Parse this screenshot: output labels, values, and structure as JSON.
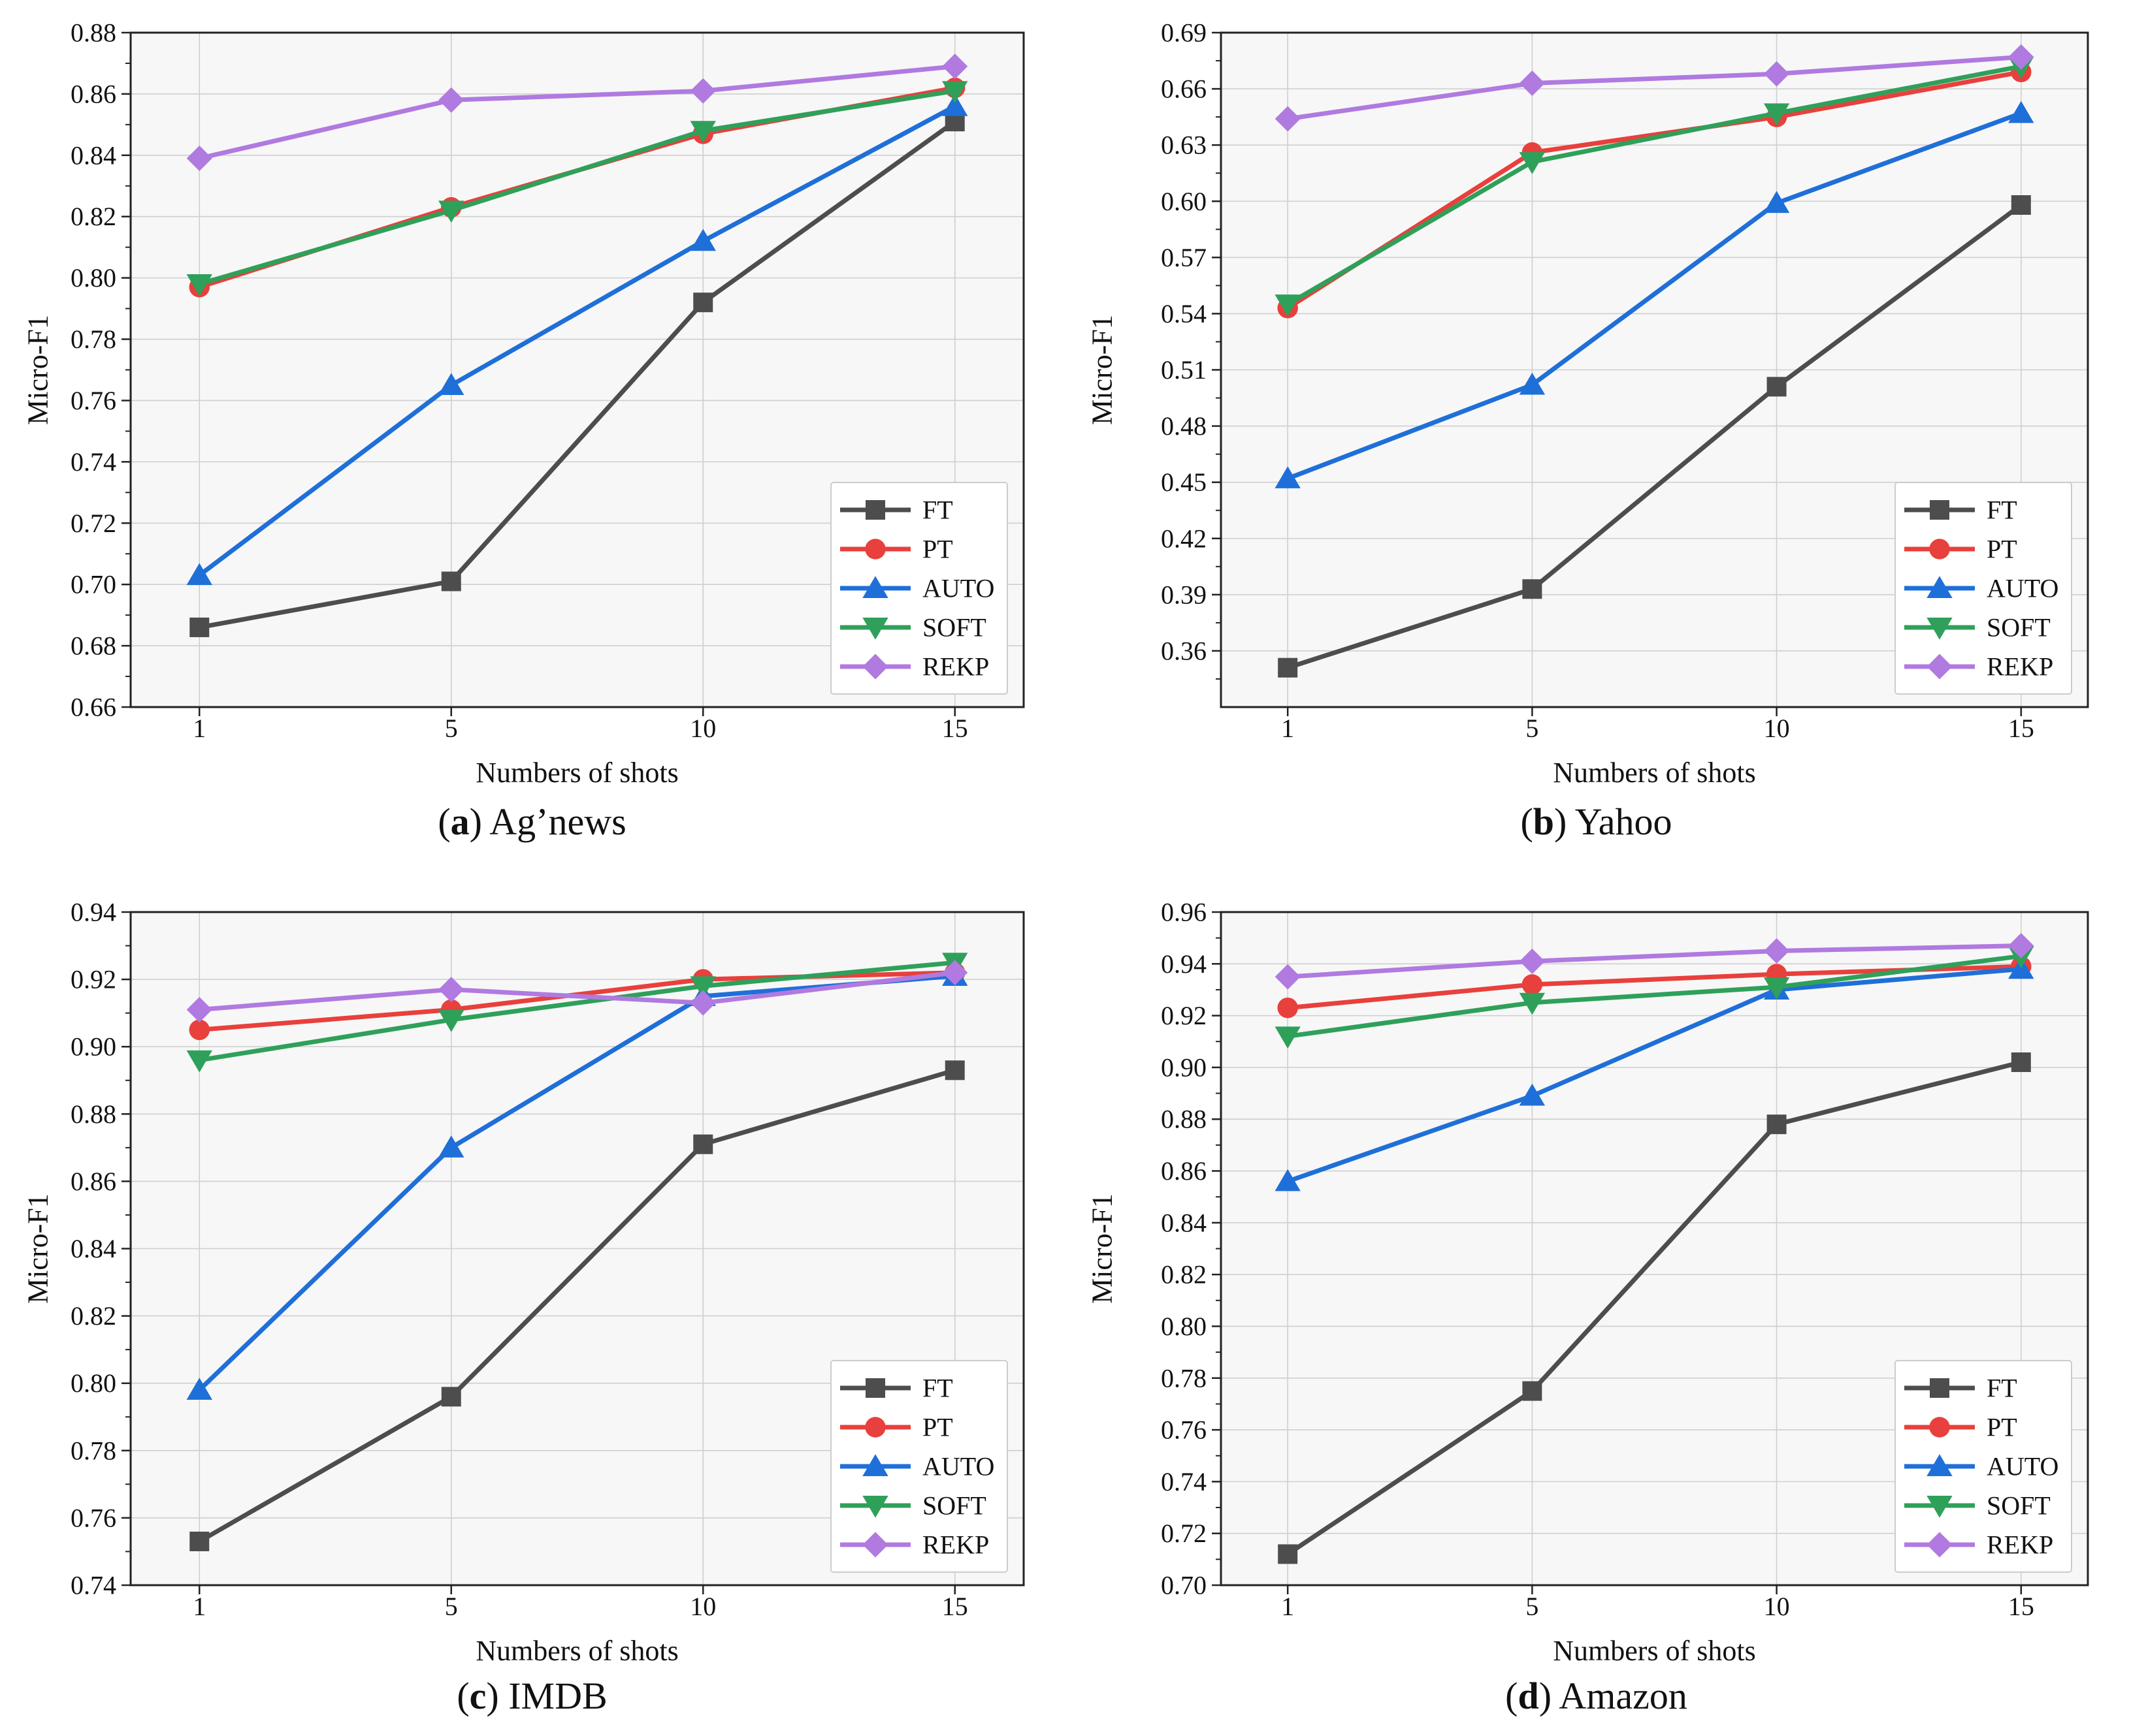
{
  "chart_data": [
    {
      "type": "line",
      "caption": {
        "letter": "a",
        "name": "Ag’news"
      },
      "xlabel": "Numbers of shots",
      "ylabel": "Micro-F1",
      "categories": [
        "1",
        "5",
        "10",
        "15"
      ],
      "ylim": [
        0.66,
        0.88
      ],
      "yticks": [
        "0.66",
        "0.68",
        "0.70",
        "0.72",
        "0.74",
        "0.76",
        "0.78",
        "0.80",
        "0.82",
        "0.84",
        "0.86",
        "0.88"
      ],
      "grid": true,
      "legend_position": "lower-right",
      "series": [
        {
          "name": "FT",
          "values": [
            0.686,
            0.701,
            0.792,
            0.851
          ]
        },
        {
          "name": "PT",
          "values": [
            0.797,
            0.823,
            0.847,
            0.862
          ]
        },
        {
          "name": "AUTO",
          "values": [
            0.703,
            0.765,
            0.812,
            0.856
          ]
        },
        {
          "name": "SOFT",
          "values": [
            0.798,
            0.822,
            0.848,
            0.861
          ]
        },
        {
          "name": "REKP",
          "values": [
            0.839,
            0.858,
            0.861,
            0.869
          ]
        }
      ]
    },
    {
      "type": "line",
      "caption": {
        "letter": "b",
        "name": "Yahoo"
      },
      "xlabel": "Numbers of shots",
      "ylabel": "Micro-F1",
      "categories": [
        "1",
        "5",
        "10",
        "15"
      ],
      "ylim": [
        0.33,
        0.69
      ],
      "yticks": [
        "0.36",
        "0.39",
        "0.42",
        "0.45",
        "0.48",
        "0.51",
        "0.54",
        "0.57",
        "0.60",
        "0.63",
        "0.66",
        "0.69"
      ],
      "grid": true,
      "legend_position": "lower-right",
      "series": [
        {
          "name": "FT",
          "values": [
            0.351,
            0.393,
            0.501,
            0.598
          ]
        },
        {
          "name": "PT",
          "values": [
            0.543,
            0.626,
            0.645,
            0.669
          ]
        },
        {
          "name": "AUTO",
          "values": [
            0.452,
            0.502,
            0.599,
            0.647
          ]
        },
        {
          "name": "SOFT",
          "values": [
            0.545,
            0.621,
            0.647,
            0.672
          ]
        },
        {
          "name": "REKP",
          "values": [
            0.644,
            0.663,
            0.668,
            0.677
          ]
        }
      ]
    },
    {
      "type": "line",
      "caption": {
        "letter": "c",
        "name": "IMDB"
      },
      "xlabel": "Numbers of shots",
      "ylabel": "Micro-F1",
      "categories": [
        "1",
        "5",
        "10",
        "15"
      ],
      "ylim": [
        0.74,
        0.94
      ],
      "yticks": [
        "0.74",
        "0.76",
        "0.78",
        "0.80",
        "0.82",
        "0.84",
        "0.86",
        "0.88",
        "0.90",
        "0.92",
        "0.94"
      ],
      "grid": true,
      "legend_position": "lower-right",
      "series": [
        {
          "name": "FT",
          "values": [
            0.753,
            0.796,
            0.871,
            0.893
          ]
        },
        {
          "name": "PT",
          "values": [
            0.905,
            0.911,
            0.92,
            0.922
          ]
        },
        {
          "name": "AUTO",
          "values": [
            0.798,
            0.87,
            0.915,
            0.921
          ]
        },
        {
          "name": "SOFT",
          "values": [
            0.896,
            0.908,
            0.918,
            0.925
          ]
        },
        {
          "name": "REKP",
          "values": [
            0.911,
            0.917,
            0.913,
            0.922
          ]
        }
      ]
    },
    {
      "type": "line",
      "caption": {
        "letter": "d",
        "name": "Amazon"
      },
      "xlabel": "Numbers of shots",
      "ylabel": "Micro-F1",
      "categories": [
        "1",
        "5",
        "10",
        "15"
      ],
      "ylim": [
        0.7,
        0.96
      ],
      "yticks": [
        "0.70",
        "0.72",
        "0.74",
        "0.76",
        "0.78",
        "0.80",
        "0.82",
        "0.84",
        "0.86",
        "0.88",
        "0.90",
        "0.92",
        "0.94",
        "0.96"
      ],
      "grid": true,
      "legend_position": "lower-right",
      "series": [
        {
          "name": "FT",
          "values": [
            0.712,
            0.775,
            0.878,
            0.902
          ]
        },
        {
          "name": "PT",
          "values": [
            0.923,
            0.932,
            0.936,
            0.939
          ]
        },
        {
          "name": "AUTO",
          "values": [
            0.856,
            0.889,
            0.93,
            0.938
          ]
        },
        {
          "name": "SOFT",
          "values": [
            0.912,
            0.925,
            0.931,
            0.943
          ]
        },
        {
          "name": "REKP",
          "values": [
            0.935,
            0.941,
            0.945,
            0.947
          ]
        }
      ]
    }
  ],
  "series_styles": [
    {
      "name": "FT",
      "color": "#4d4d4d",
      "marker": "square"
    },
    {
      "name": "PT",
      "color": "#e8403c",
      "marker": "circle"
    },
    {
      "name": "AUTO",
      "color": "#1f6fd8",
      "marker": "triangle-up"
    },
    {
      "name": "SOFT",
      "color": "#2fa05a",
      "marker": "triangle-down"
    },
    {
      "name": "REKP",
      "color": "#b07ae0",
      "marker": "diamond"
    }
  ],
  "colors": {
    "plot_background": "#f7f7f7",
    "grid": "#cfcfcf",
    "axis": "#222222"
  }
}
